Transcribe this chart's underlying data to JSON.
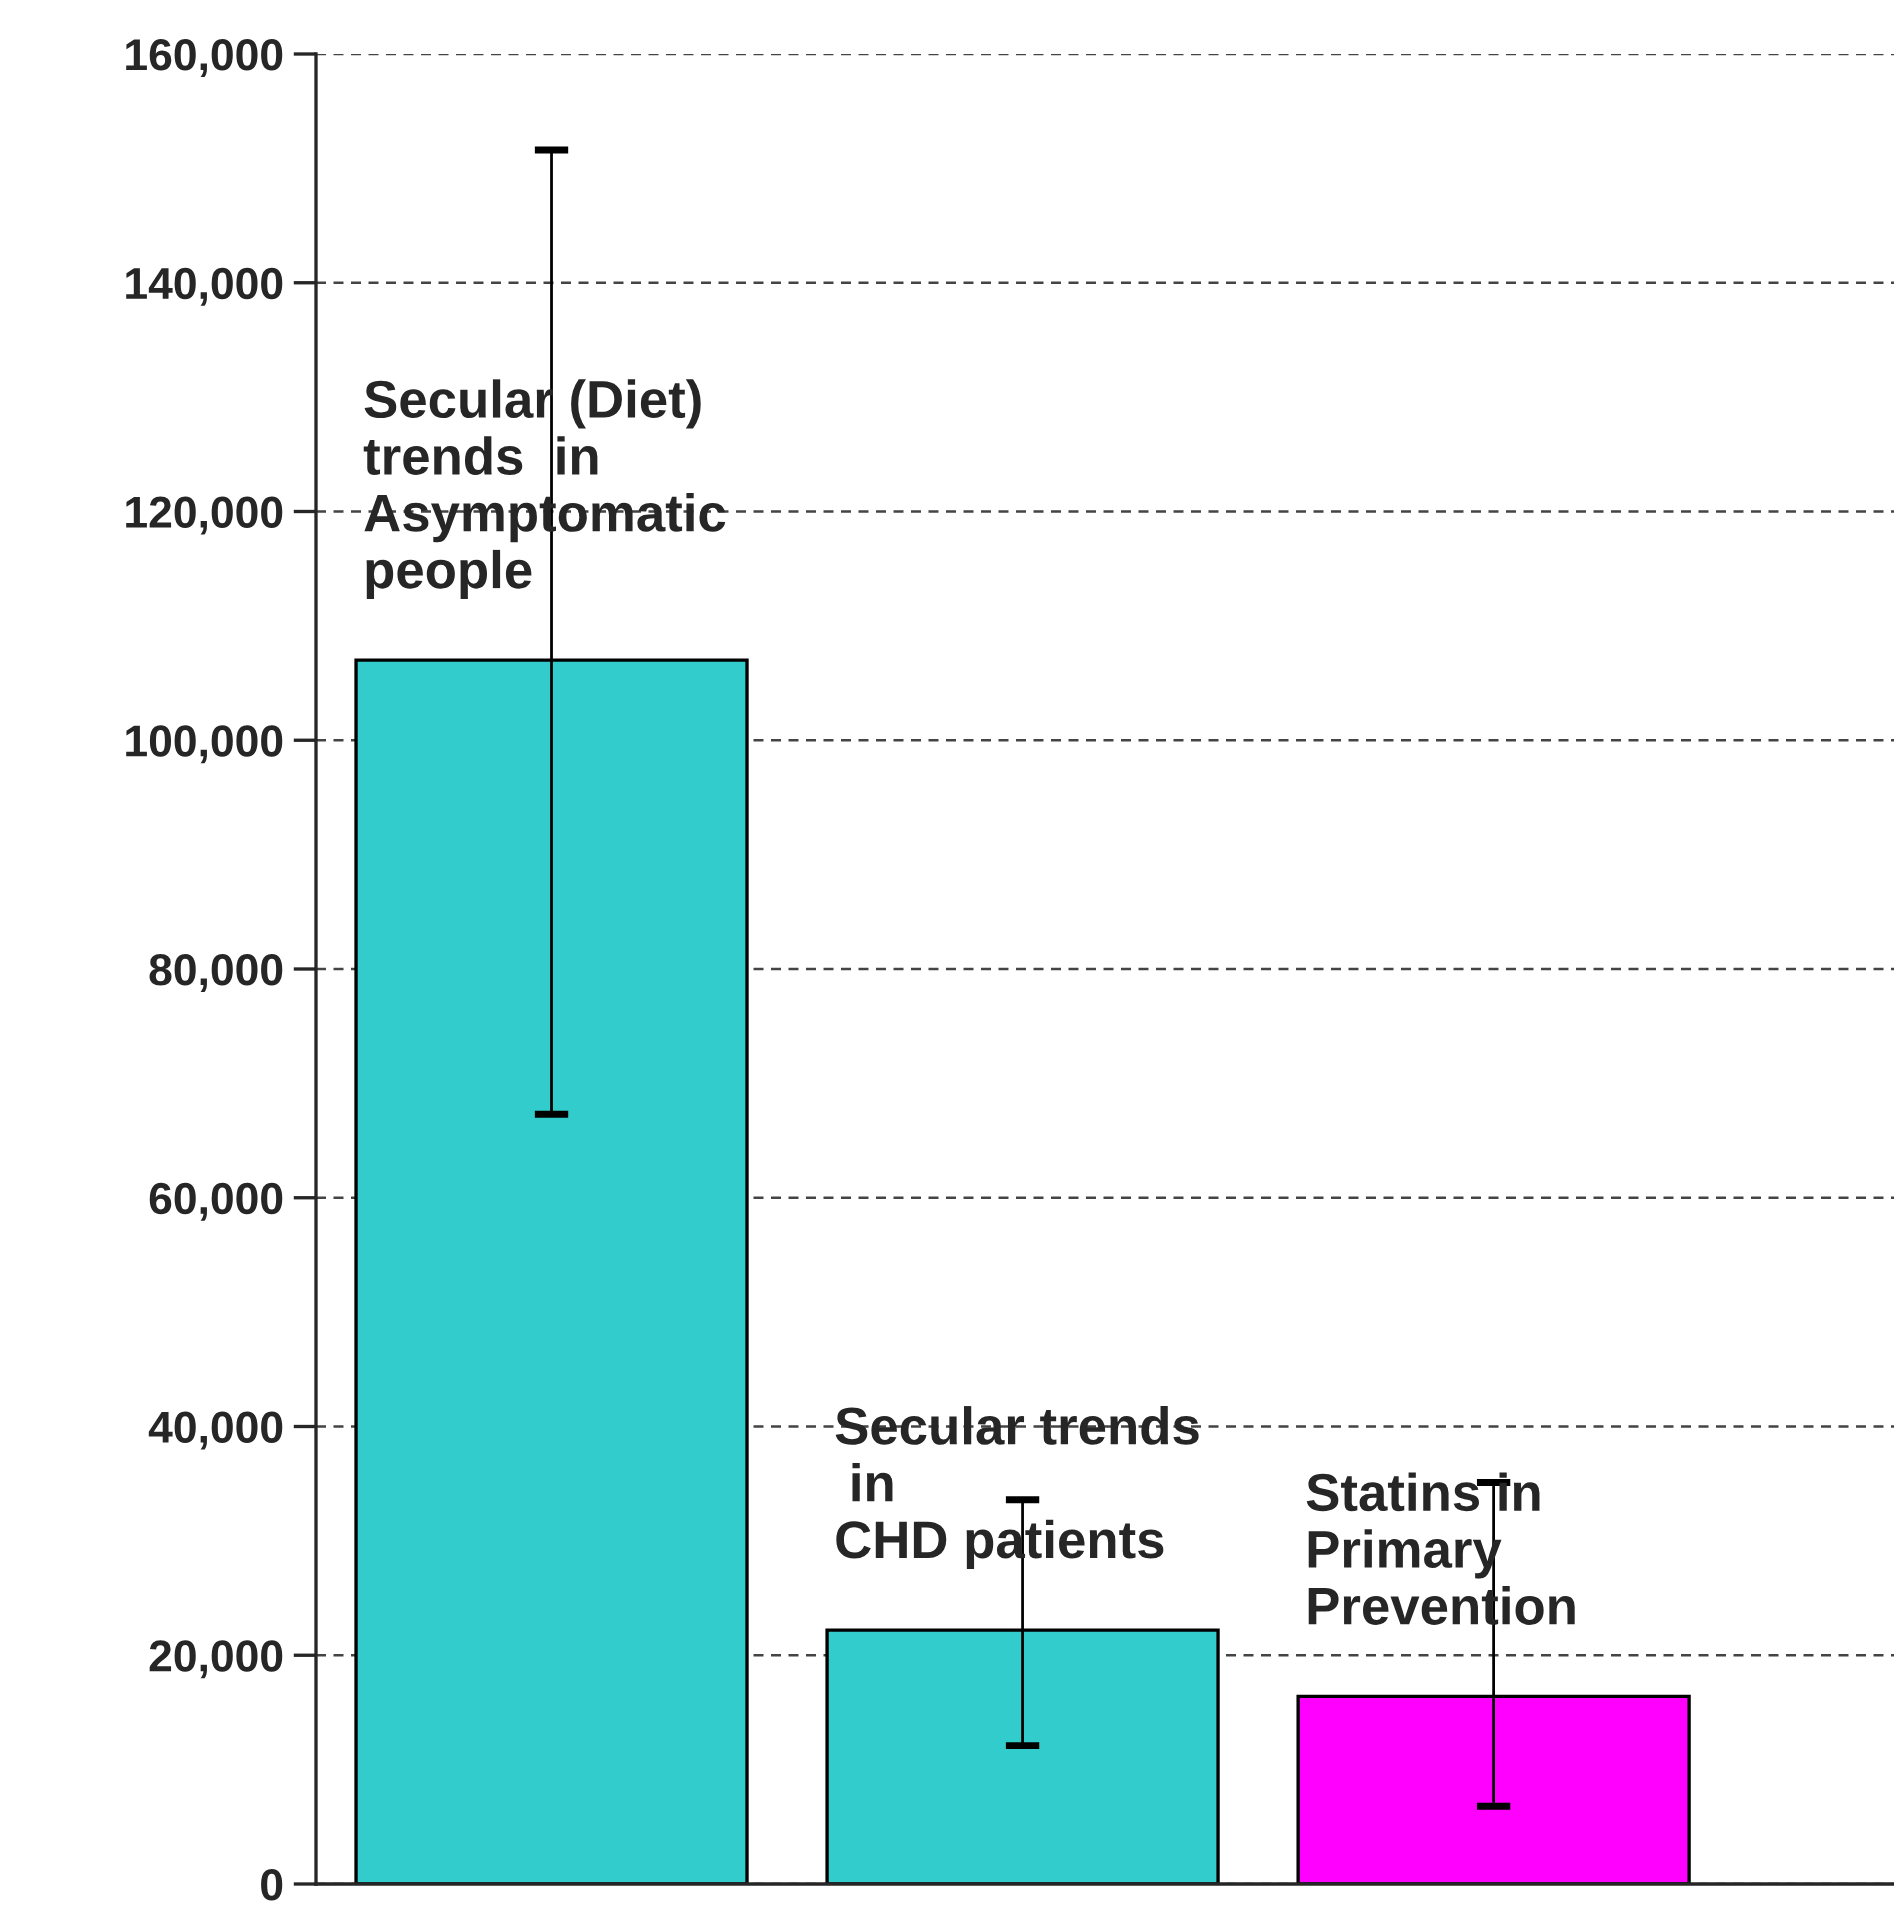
{
  "chart_data": {
    "type": "bar",
    "categories": [
      "Secular (Diet)\ntrends  in\nAsymptomatic\npeople",
      "Secular trends\n in\nCHD patients",
      "Statins in\nPrimary\nPrevention"
    ],
    "values": [
      107000,
      22200,
      16400
    ],
    "colors": [
      "#33cccc",
      "#33cccc",
      "#ff00ff"
    ],
    "errors": [
      [
        67300,
        151600
      ],
      [
        12100,
        33600
      ],
      [
        6800,
        35100
      ]
    ],
    "ylim": [
      0,
      160000
    ],
    "yticks": [
      {
        "value": 0,
        "label": "0"
      },
      {
        "value": 20000,
        "label": "20,000"
      },
      {
        "value": 40000,
        "label": "40,000"
      },
      {
        "value": 60000,
        "label": "60,000"
      },
      {
        "value": 80000,
        "label": "80,000"
      },
      {
        "value": 100000,
        "label": "100,000"
      },
      {
        "value": 120000,
        "label": "120,000"
      },
      {
        "value": 140000,
        "label": "140,000"
      },
      {
        "value": 160000,
        "label": "160,000"
      }
    ],
    "grid": "y",
    "tick_labels": "y"
  }
}
